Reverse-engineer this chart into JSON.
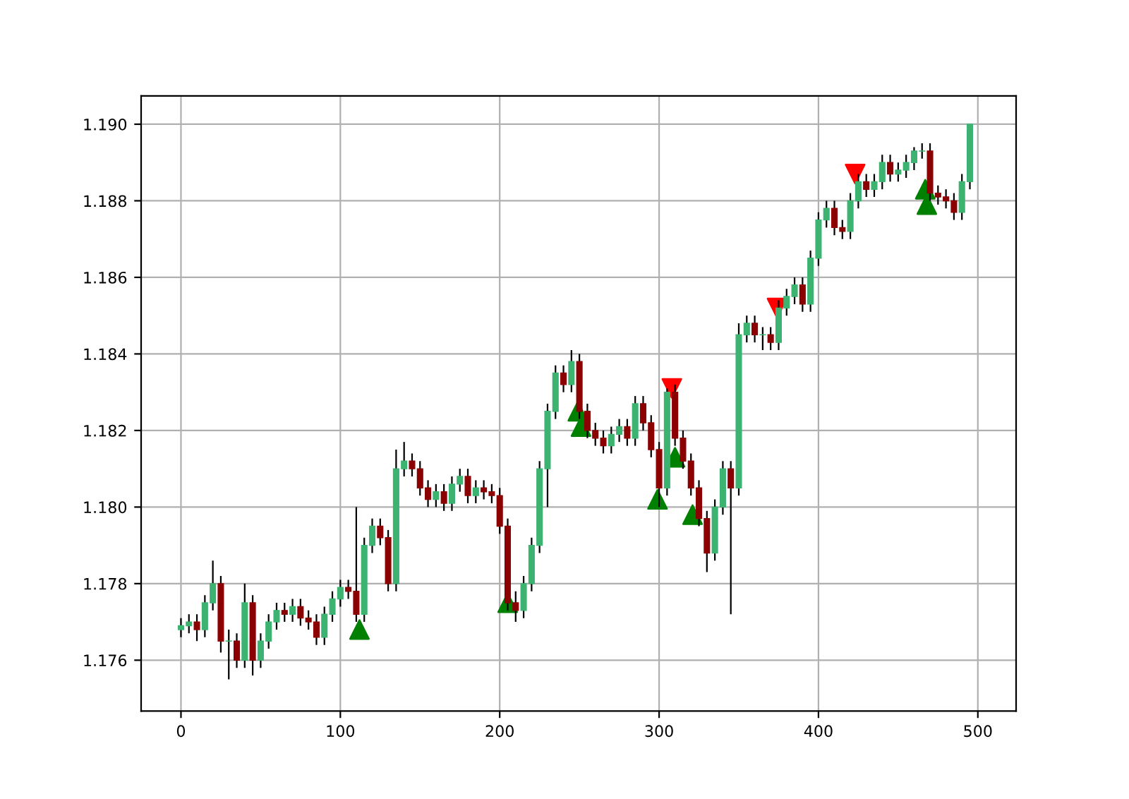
{
  "chart_data": {
    "type": "candlestick",
    "x": [
      0,
      5,
      10,
      15,
      20,
      25,
      30,
      35,
      40,
      45,
      50,
      55,
      60,
      65,
      70,
      75,
      80,
      85,
      90,
      95,
      100,
      105,
      110,
      115,
      120,
      125,
      130,
      135,
      140,
      145,
      150,
      155,
      160,
      165,
      170,
      175,
      180,
      185,
      190,
      195,
      200,
      205,
      210,
      215,
      220,
      225,
      230,
      235,
      240,
      245,
      250,
      255,
      260,
      265,
      270,
      275,
      280,
      285,
      290,
      295,
      300,
      305,
      310,
      315,
      320,
      325,
      330,
      335,
      340,
      345,
      350,
      355,
      360,
      365,
      370,
      375,
      380,
      385,
      390,
      395,
      400,
      405,
      410,
      415,
      420,
      425,
      430,
      435,
      440,
      445,
      450,
      455,
      460,
      465,
      470,
      475,
      480,
      485,
      490,
      495
    ],
    "ohlc": [
      [
        1.1768,
        1.1771,
        1.1766,
        1.1769
      ],
      [
        1.1769,
        1.1772,
        1.1767,
        1.177
      ],
      [
        1.177,
        1.1772,
        1.1765,
        1.1768
      ],
      [
        1.1768,
        1.1777,
        1.1766,
        1.1775
      ],
      [
        1.1775,
        1.1786,
        1.1773,
        1.178
      ],
      [
        1.178,
        1.1782,
        1.1762,
        1.1765
      ],
      [
        1.1765,
        1.1768,
        1.1755,
        1.1765
      ],
      [
        1.1765,
        1.1767,
        1.1758,
        1.176
      ],
      [
        1.176,
        1.178,
        1.1758,
        1.1775
      ],
      [
        1.1775,
        1.1777,
        1.1756,
        1.176
      ],
      [
        1.176,
        1.1767,
        1.1758,
        1.1765
      ],
      [
        1.1765,
        1.1772,
        1.1763,
        1.177
      ],
      [
        1.177,
        1.1775,
        1.1768,
        1.1773
      ],
      [
        1.1773,
        1.1775,
        1.177,
        1.1772
      ],
      [
        1.1772,
        1.1776,
        1.177,
        1.1774
      ],
      [
        1.1774,
        1.1776,
        1.1769,
        1.1771
      ],
      [
        1.1771,
        1.1773,
        1.1768,
        1.177
      ],
      [
        1.177,
        1.1772,
        1.1764,
        1.1766
      ],
      [
        1.1766,
        1.1774,
        1.1764,
        1.1772
      ],
      [
        1.1772,
        1.1778,
        1.177,
        1.1776
      ],
      [
        1.1776,
        1.1781,
        1.1774,
        1.1779
      ],
      [
        1.1779,
        1.1781,
        1.1776,
        1.1778
      ],
      [
        1.1778,
        1.18,
        1.177,
        1.1772
      ],
      [
        1.1772,
        1.1792,
        1.177,
        1.179
      ],
      [
        1.179,
        1.1797,
        1.1788,
        1.1795
      ],
      [
        1.1795,
        1.1797,
        1.179,
        1.1792
      ],
      [
        1.1792,
        1.1794,
        1.1778,
        1.178
      ],
      [
        1.178,
        1.1815,
        1.1778,
        1.181
      ],
      [
        1.181,
        1.1817,
        1.1808,
        1.1812
      ],
      [
        1.1812,
        1.1814,
        1.1808,
        1.181
      ],
      [
        1.181,
        1.1812,
        1.1803,
        1.1805
      ],
      [
        1.1805,
        1.1807,
        1.18,
        1.1802
      ],
      [
        1.1802,
        1.1806,
        1.18,
        1.1804
      ],
      [
        1.1804,
        1.1806,
        1.1799,
        1.1801
      ],
      [
        1.1801,
        1.1808,
        1.1799,
        1.1806
      ],
      [
        1.1806,
        1.181,
        1.1804,
        1.1808
      ],
      [
        1.1808,
        1.181,
        1.1801,
        1.1803
      ],
      [
        1.1803,
        1.1807,
        1.1801,
        1.1805
      ],
      [
        1.1805,
        1.1807,
        1.1802,
        1.1804
      ],
      [
        1.1804,
        1.1806,
        1.1801,
        1.1803
      ],
      [
        1.1803,
        1.1805,
        1.1793,
        1.1795
      ],
      [
        1.1795,
        1.1797,
        1.1773,
        1.1775
      ],
      [
        1.1775,
        1.1778,
        1.177,
        1.1773
      ],
      [
        1.1773,
        1.1782,
        1.1771,
        1.178
      ],
      [
        1.178,
        1.1792,
        1.1778,
        1.179
      ],
      [
        1.179,
        1.1812,
        1.1788,
        1.181
      ],
      [
        1.181,
        1.1827,
        1.18,
        1.1825
      ],
      [
        1.1825,
        1.1837,
        1.1823,
        1.1835
      ],
      [
        1.1835,
        1.1837,
        1.183,
        1.1832
      ],
      [
        1.1832,
        1.1841,
        1.183,
        1.1838
      ],
      [
        1.1838,
        1.184,
        1.1823,
        1.1825
      ],
      [
        1.1825,
        1.1827,
        1.1818,
        1.182
      ],
      [
        1.182,
        1.1822,
        1.1816,
        1.1818
      ],
      [
        1.1818,
        1.182,
        1.1814,
        1.1816
      ],
      [
        1.1816,
        1.1821,
        1.1814,
        1.1819
      ],
      [
        1.1819,
        1.1823,
        1.1817,
        1.1821
      ],
      [
        1.1821,
        1.1823,
        1.1816,
        1.1818
      ],
      [
        1.1818,
        1.1829,
        1.1816,
        1.1827
      ],
      [
        1.1827,
        1.1829,
        1.182,
        1.1822
      ],
      [
        1.1822,
        1.1824,
        1.1813,
        1.1815
      ],
      [
        1.1815,
        1.1817,
        1.18,
        1.1805
      ],
      [
        1.1805,
        1.1831,
        1.1803,
        1.183
      ],
      [
        1.183,
        1.1832,
        1.1816,
        1.1818
      ],
      [
        1.1818,
        1.182,
        1.181,
        1.1812
      ],
      [
        1.1812,
        1.1814,
        1.1803,
        1.1805
      ],
      [
        1.1805,
        1.1807,
        1.1795,
        1.1797
      ],
      [
        1.1797,
        1.1799,
        1.1783,
        1.1788
      ],
      [
        1.1788,
        1.1802,
        1.1786,
        1.18
      ],
      [
        1.18,
        1.1812,
        1.1798,
        1.181
      ],
      [
        1.181,
        1.1812,
        1.1772,
        1.1805
      ],
      [
        1.1805,
        1.1848,
        1.1803,
        1.1845
      ],
      [
        1.1845,
        1.185,
        1.1843,
        1.1848
      ],
      [
        1.1848,
        1.185,
        1.1843,
        1.1845
      ],
      [
        1.1845,
        1.1847,
        1.1841,
        1.1845
      ],
      [
        1.1845,
        1.1847,
        1.1841,
        1.1843
      ],
      [
        1.1843,
        1.1854,
        1.1841,
        1.1852
      ],
      [
        1.1852,
        1.1857,
        1.185,
        1.1855
      ],
      [
        1.1855,
        1.186,
        1.1853,
        1.1858
      ],
      [
        1.1858,
        1.186,
        1.1851,
        1.1853
      ],
      [
        1.1853,
        1.1867,
        1.1851,
        1.1865
      ],
      [
        1.1865,
        1.1877,
        1.1863,
        1.1875
      ],
      [
        1.1875,
        1.188,
        1.1873,
        1.1878
      ],
      [
        1.1878,
        1.188,
        1.1871,
        1.1873
      ],
      [
        1.1873,
        1.1875,
        1.187,
        1.1872
      ],
      [
        1.1872,
        1.1882,
        1.187,
        1.188
      ],
      [
        1.188,
        1.1887,
        1.1878,
        1.1885
      ],
      [
        1.1885,
        1.1887,
        1.1881,
        1.1883
      ],
      [
        1.1883,
        1.1887,
        1.1881,
        1.1885
      ],
      [
        1.1885,
        1.1892,
        1.1883,
        1.189
      ],
      [
        1.189,
        1.1892,
        1.1885,
        1.1887
      ],
      [
        1.1887,
        1.189,
        1.1885,
        1.1888
      ],
      [
        1.1888,
        1.1892,
        1.1886,
        1.189
      ],
      [
        1.189,
        1.1894,
        1.1888,
        1.1893
      ],
      [
        1.1893,
        1.1895,
        1.1891,
        1.1893
      ],
      [
        1.1893,
        1.1895,
        1.188,
        1.1882
      ],
      [
        1.1882,
        1.1884,
        1.1879,
        1.1881
      ],
      [
        1.1881,
        1.1883,
        1.1878,
        1.188
      ],
      [
        1.188,
        1.1882,
        1.1875,
        1.1877
      ],
      [
        1.1877,
        1.1887,
        1.1875,
        1.1885
      ],
      [
        1.1885,
        1.19,
        1.1883,
        1.19
      ]
    ],
    "series": [
      {
        "type": "scatter",
        "marker": "triangle",
        "color": "#008000",
        "x": [
          112,
          205,
          249,
          251,
          299,
          310,
          321,
          467,
          468
        ],
        "values": [
          1.1768,
          1.1775,
          1.1825,
          1.1821,
          1.1802,
          1.1813,
          1.1798,
          1.1883,
          1.1879
        ]
      },
      {
        "type": "scatter",
        "marker": "triangle_down",
        "color": "#ff0000",
        "x": [
          308,
          374,
          423
        ],
        "values": [
          1.1831,
          1.1852,
          1.1887
        ]
      }
    ],
    "xlim": [
      -25,
      524
    ],
    "ylim": [
      1.17467,
      1.19074
    ],
    "xticks": [
      0,
      100,
      200,
      300,
      400,
      500
    ],
    "yticks": [
      1.176,
      1.178,
      {
        "value": 1.18,
        "label": "1.180"
      },
      1.182,
      1.184,
      1.186,
      1.188,
      {
        "value": 1.19,
        "label": "1.190"
      }
    ],
    "grid": true
  }
}
